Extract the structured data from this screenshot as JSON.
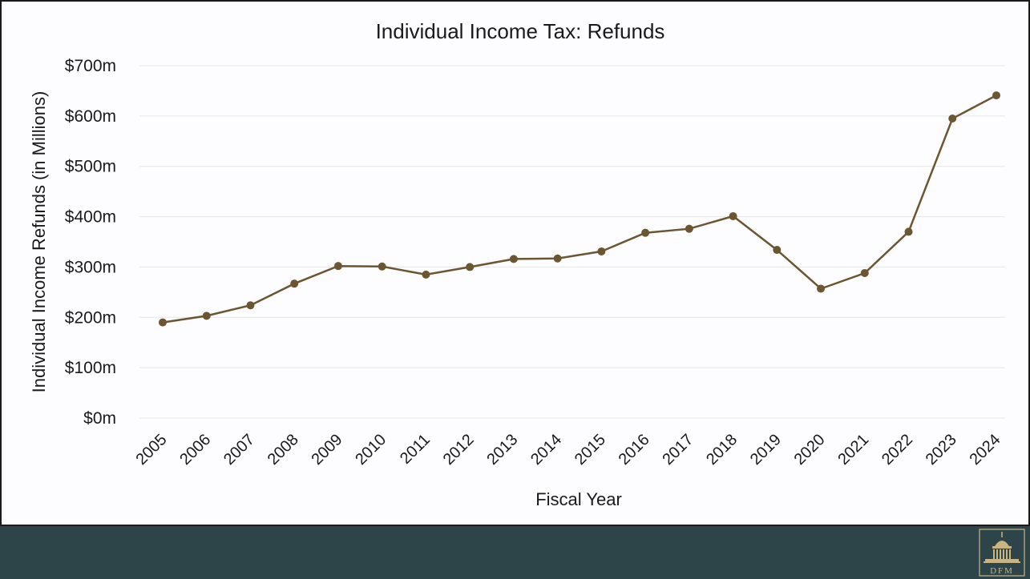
{
  "chart_data": {
    "type": "line",
    "title": "Individual Income Tax: Refunds",
    "xlabel": "Fiscal Year",
    "ylabel": "Individual Income Refunds (in Millions)",
    "categories": [
      "2005",
      "2006",
      "2007",
      "2008",
      "2009",
      "2010",
      "2011",
      "2012",
      "2013",
      "2014",
      "2015",
      "2016",
      "2017",
      "2018",
      "2019",
      "2020",
      "2021",
      "2022",
      "2023",
      "2024"
    ],
    "series": [
      {
        "values": [
          190,
          203,
          224,
          267,
          302,
          301,
          285,
          300,
          316,
          317,
          331,
          368,
          376,
          401,
          334,
          257,
          288,
          370,
          595,
          641
        ]
      }
    ],
    "ylim": [
      0,
      700
    ],
    "y_ticks": [
      0,
      100,
      200,
      300,
      400,
      500,
      600,
      700
    ],
    "y_tick_labels": [
      "$0m",
      "$100m",
      "$200m",
      "$300m",
      "$400m",
      "$500m",
      "$600m",
      "$700m"
    ],
    "grid": true,
    "legend": "none",
    "line_color": "#6b5631",
    "grid_color": "#e3e7e9"
  },
  "footer": {
    "logo_text": "DFM",
    "background": "#2d4449"
  }
}
